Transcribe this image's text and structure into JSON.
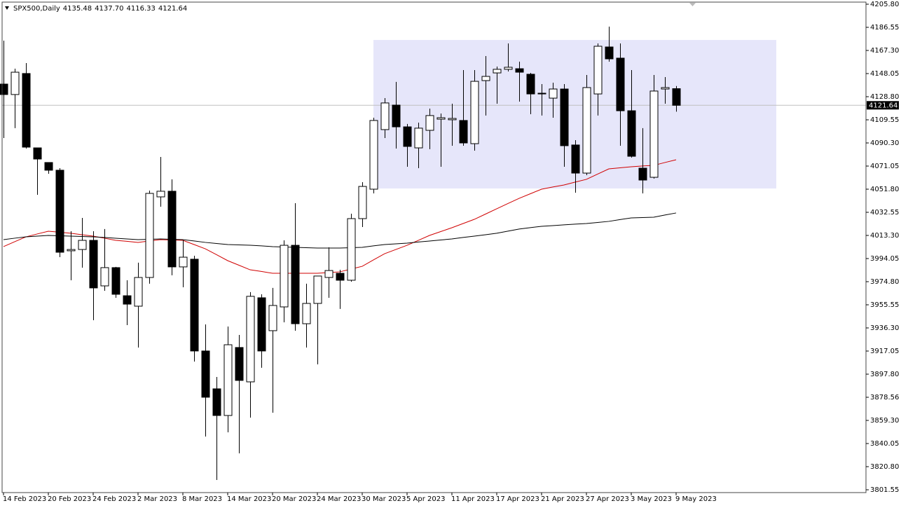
{
  "chart_data": {
    "type": "candlestick",
    "title": "SPX500,Daily",
    "legend_values": [
      "4135.48",
      "4137.70",
      "4116.33",
      "4121.64"
    ],
    "categories": [
      "14 Feb 2023",
      null,
      null,
      null,
      "20 Feb 2023",
      null,
      null,
      null,
      "24 Feb 2023",
      null,
      null,
      null,
      "2 Mar 2023",
      null,
      null,
      null,
      "8 Mar 2023",
      null,
      null,
      null,
      "14 Mar 2023",
      null,
      null,
      null,
      "20 Mar 2023",
      null,
      null,
      null,
      "24 Mar 2023",
      null,
      null,
      null,
      "30 Mar 2023",
      null,
      null,
      null,
      "5 Apr 2023",
      null,
      null,
      null,
      "11 Apr 2023",
      null,
      null,
      null,
      "17 Apr 2023",
      null,
      null,
      null,
      "21 Apr 2023",
      null,
      null,
      null,
      "27 Apr 2023",
      null,
      null,
      null,
      "3 May 2023",
      null,
      null,
      null,
      "9 May 2023"
    ],
    "open": [
      4139.3,
      4130.6,
      4148.1,
      4086.2,
      4074.0,
      4067.6,
      4000.5,
      4001.6,
      4009.2,
      3971.3,
      3986.5,
      3963.1,
      3954.4,
      3978.3,
      4045.4,
      4050.1,
      3987.1,
      3993.5,
      3917.1,
      3885.6,
      3863.4,
      3920.0,
      3891.4,
      3961.4,
      3934.0,
      3953.8,
      4005.1,
      3939.8,
      3956.7,
      3978.3,
      3981.8,
      3976.0,
      4027.3,
      4051.8,
      4101.4,
      4121.8,
      4103.7,
      4086.2,
      4100.8,
      4110.1,
      4109.6,
      4109.0,
      4089.7,
      4142.2,
      4148.6,
      4151.6,
      4152.1,
      4147.5,
      4131.7,
      4127.6,
      4135.2,
      4088.6,
      4065.2,
      4131.1,
      4170.2,
      4160.9,
      4117.1,
      4069.3,
      4061.7,
      4135.2,
      4135.48
    ],
    "high": [
      4175.5,
      4152.1,
      4156.8,
      4086.2,
      4074.0,
      4069.3,
      4016.8,
      4027.9,
      4016.8,
      4018.6,
      3987.1,
      3976.0,
      3990.6,
      4050.6,
      4078.6,
      4060.0,
      4009.2,
      3996.4,
      3939.2,
      3895.5,
      3937.5,
      3930.5,
      3966.1,
      3964.3,
      3969.6,
      4009.2,
      4040.1,
      3973.1,
      3979.5,
      4003.4,
      3984.7,
      4031.4,
      4057.6,
      4111.3,
      4127.6,
      4141.1,
      4106.1,
      4107.2,
      4118.9,
      4114.8,
      4123.0,
      4151.0,
      4151.0,
      4162.6,
      4153.9,
      4173.1,
      4158.0,
      4148.6,
      4139.3,
      4140.5,
      4139.3,
      4092.6,
      4146.9,
      4173.1,
      4187.1,
      4173.1,
      4151.0,
      4102.6,
      4146.9,
      4145.1,
      4137.7
    ],
    "low": [
      4094.4,
      4102.6,
      4085.6,
      4047.1,
      4064.6,
      3995.2,
      3976.0,
      3986.5,
      3942.7,
      3967.2,
      3961.4,
      3938.6,
      3920.0,
      3973.1,
      4037.2,
      3980.1,
      3970.1,
      3908.3,
      3845.9,
      3809.7,
      3849.4,
      3831.9,
      3861.6,
      3903.1,
      3865.7,
      3941.0,
      3934.0,
      3920.0,
      3906.0,
      3961.4,
      3952.1,
      3974.8,
      4020.3,
      4048.3,
      4094.4,
      4085.6,
      4070.5,
      4069.3,
      4085.1,
      4070.5,
      4088.0,
      4088.0,
      4083.9,
      4113.1,
      4123.0,
      4149.8,
      4124.7,
      4114.2,
      4113.1,
      4111.3,
      4070.5,
      4048.9,
      4063.5,
      4113.1,
      4158.0,
      4088.0,
      4078.1,
      4048.3,
      4060.6,
      4123.0,
      4116.33
    ],
    "close": [
      4130.6,
      4149.2,
      4086.8,
      4076.9,
      4067.6,
      3999.3,
      4001.6,
      4009.2,
      3969.6,
      3986.5,
      3964.3,
      3956.1,
      3978.3,
      4048.3,
      4050.1,
      3987.1,
      3995.2,
      3917.1,
      3878.6,
      3863.4,
      3922.3,
      3892.6,
      3962.6,
      3917.1,
      3955.0,
      4005.1,
      3939.8,
      3956.7,
      3979.5,
      3984.1,
      3976.0,
      4027.3,
      4054.1,
      4109.0,
      4123.6,
      4103.7,
      4087.4,
      4102.6,
      4113.1,
      4111.3,
      4110.7,
      4090.3,
      4141.6,
      4145.7,
      4151.6,
      4153.3,
      4149.2,
      4131.1,
      4131.1,
      4135.2,
      4088.0,
      4065.2,
      4136.4,
      4170.8,
      4160.3,
      4117.1,
      4079.2,
      4059.4,
      4133.5,
      4136.4,
      4121.64
    ],
    "overlays": [
      {
        "color": "#d00000",
        "values": [
          4004.0,
          4008.1,
          4012.1,
          4014.5,
          4016.8,
          4016.0,
          4015.1,
          4013.9,
          4012.7,
          4011.0,
          4009.2,
          4008.4,
          4007.5,
          4008.7,
          4009.8,
          4009.5,
          4009.2,
          4005.7,
          4002.2,
          3997.3,
          3992.3,
          3988.5,
          3984.7,
          3983.3,
          3981.8,
          3981.8,
          3981.8,
          3981.8,
          3981.8,
          3982.4,
          3983.0,
          3985.3,
          3987.6,
          3992.9,
          3998.1,
          4001.6,
          4005.1,
          4009.2,
          4013.3,
          4016.5,
          4019.7,
          4023.2,
          4026.7,
          4031.1,
          4035.5,
          4039.9,
          4044.2,
          4048.0,
          4051.8,
          4053.6,
          4055.3,
          4057.7,
          4060.0,
          4064.4,
          4068.7,
          4069.6,
          4070.5,
          4071.1,
          4071.6,
          4074.0,
          4076.3
        ]
      },
      {
        "color": "#000000",
        "values": [
          4009.8,
          4011.0,
          4012.1,
          4012.7,
          4013.3,
          4013.0,
          4012.7,
          4012.4,
          4012.1,
          4011.6,
          4011.0,
          4010.4,
          4009.8,
          4010.1,
          4010.4,
          4010.1,
          4009.8,
          4008.7,
          4007.5,
          4006.6,
          4005.7,
          4005.4,
          4005.1,
          4004.6,
          4004.0,
          4003.7,
          4003.4,
          4003.1,
          4002.8,
          4002.8,
          4002.8,
          4003.1,
          4003.4,
          4004.6,
          4005.7,
          4006.3,
          4006.9,
          4007.8,
          4008.6,
          4009.5,
          4010.4,
          4011.6,
          4012.7,
          4013.9,
          4015.1,
          4016.9,
          4018.6,
          4019.8,
          4020.9,
          4021.5,
          4022.1,
          4022.7,
          4023.2,
          4024.1,
          4025.0,
          4026.5,
          4027.9,
          4028.2,
          4028.5,
          4030.3,
          4032.0
        ]
      }
    ],
    "zone": {
      "top": 4176.0,
      "bottom": 4052.4,
      "color": "#e6e6fa"
    },
    "last_price": 4121.64,
    "up_color": "#ffffff",
    "down_color": "#000000",
    "ylim": [
      3801.55,
      4205.8
    ],
    "yticks": [
      {
        "value": 4205.8,
        "label": "4205.80"
      },
      4186.55,
      {
        "value": 4167.3,
        "label": "4167.30"
      },
      4148.05,
      {
        "value": 4128.8,
        "label": "4128.80"
      },
      4109.55,
      {
        "value": 4090.3,
        "label": "4090.30"
      },
      4071.05,
      {
        "value": 4051.8,
        "label": "4051.80"
      },
      4032.55,
      {
        "value": 4013.3,
        "label": "4013.30"
      },
      3994.05,
      {
        "value": 3974.8,
        "label": "3974.80"
      },
      3955.55,
      {
        "value": 3936.3,
        "label": "3936.30"
      },
      3917.05,
      {
        "value": 3897.8,
        "label": "3897.80"
      },
      3878.56,
      {
        "value": 3859.3,
        "label": "3859.30"
      },
      3840.05,
      {
        "value": 3820.8,
        "label": "3820.80"
      },
      3801.55
    ],
    "grid": false
  }
}
